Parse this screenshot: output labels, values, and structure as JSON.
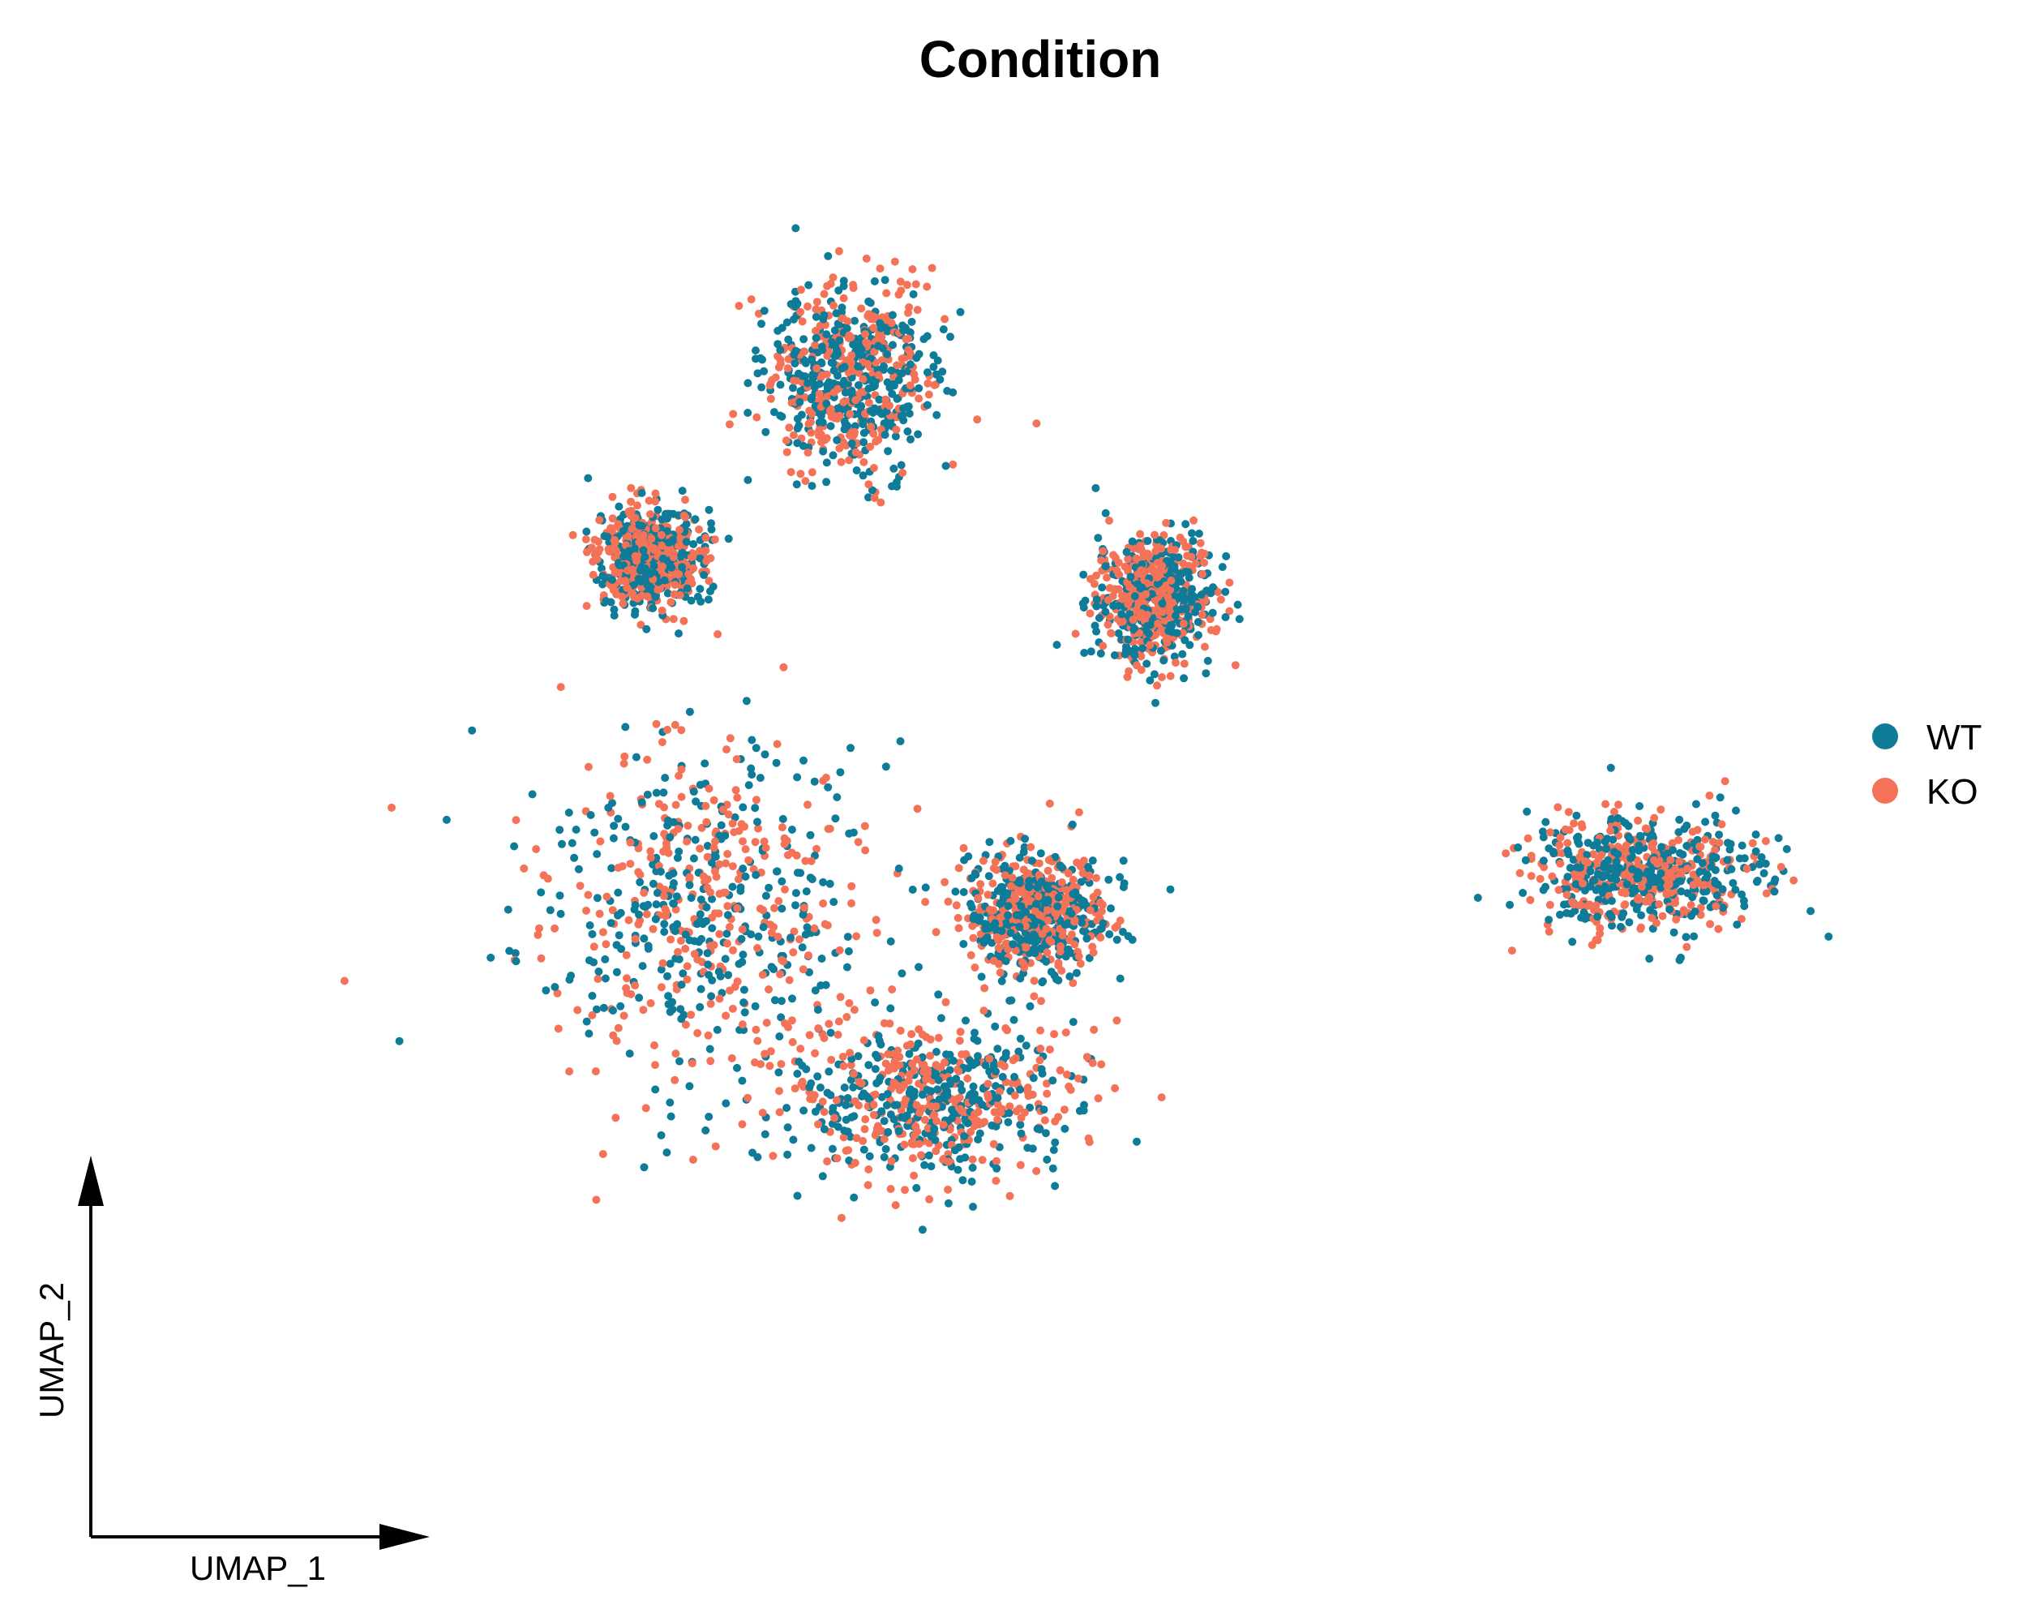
{
  "chart_data": {
    "type": "scatter",
    "title": "Condition",
    "xlabel": "UMAP_1",
    "ylabel": "UMAP_2",
    "axis_ticks": false,
    "grid": false,
    "legend_position": "right",
    "series": [
      {
        "name": "WT",
        "color": "#0E7C98"
      },
      {
        "name": "KO",
        "color": "#F47358"
      }
    ],
    "clusters": [
      {
        "id": "main-body",
        "center": [
          -4.5,
          -1.2
        ],
        "spread": [
          3.0,
          2.8
        ]
      },
      {
        "id": "lower-lobe",
        "center": [
          -0.8,
          -4.0
        ],
        "spread": [
          2.5,
          1.3
        ]
      },
      {
        "id": "right-shoulder",
        "center": [
          0.8,
          -1.3
        ],
        "spread": [
          1.2,
          1.0
        ]
      },
      {
        "id": "upper-left-arm",
        "center": [
          -5.2,
          3.9
        ],
        "spread": [
          0.9,
          0.8
        ]
      },
      {
        "id": "top-lobe",
        "center": [
          -2.1,
          6.5
        ],
        "spread": [
          1.5,
          1.6
        ]
      },
      {
        "id": "mid-island",
        "center": [
          2.6,
          3.3
        ],
        "spread": [
          1.0,
          1.0
        ]
      },
      {
        "id": "far-right-island",
        "center": [
          10.2,
          -0.7
        ],
        "spread": [
          2.0,
          0.9
        ]
      }
    ],
    "xlim": [
      -12,
      14
    ],
    "ylim": [
      -9,
      10
    ]
  }
}
